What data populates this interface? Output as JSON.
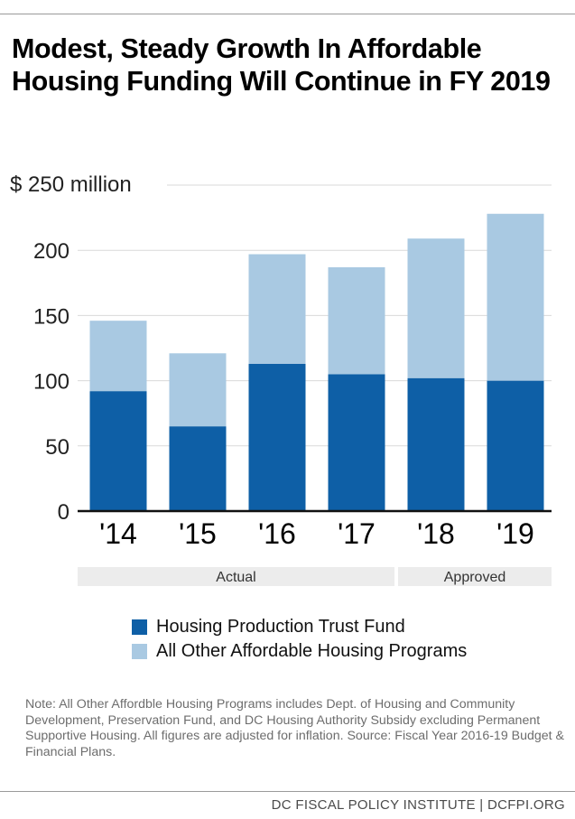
{
  "title": "Modest, Steady Growth In Affordable Housing Funding Will Continue in FY 2019",
  "colors": {
    "primary": "#0e5fa6",
    "secondary": "#a9c9e2",
    "gridline": "#d9d9d9",
    "axis": "#111111",
    "group_band": "#ececec"
  },
  "chart_data": {
    "type": "bar",
    "stacked": true,
    "categories": [
      "'14",
      "'15",
      "'16",
      "'17",
      "'18",
      "'19"
    ],
    "series": [
      {
        "name": "Housing Production Trust Fund",
        "values": [
          92,
          65,
          113,
          105,
          102,
          100
        ]
      },
      {
        "name": "All Other Affordable Housing Programs",
        "values": [
          54,
          56,
          84,
          82,
          107,
          128
        ]
      }
    ],
    "ylim": [
      0,
      250
    ],
    "yticks": [
      0,
      50,
      100,
      150,
      200,
      250
    ],
    "ytick_labels": [
      "0",
      "50",
      "100",
      "150",
      "200",
      "$ 250 million"
    ],
    "grid": true,
    "legend_position": "bottom",
    "groups": [
      {
        "label": "Actual",
        "categories": [
          "'14",
          "'15",
          "'16",
          "'17"
        ]
      },
      {
        "label": "Approved",
        "categories": [
          "'18",
          "'19"
        ]
      }
    ]
  },
  "note": "Note: All Other Affordble Housing Programs includes Dept. of Housing and Community Development, Preservation Fund, and DC Housing Authority Subsidy excluding Permanent Supportive Housing. All figures are adjusted for inflation. Source: Fiscal Year 2016-19 Budget & Financial Plans.",
  "footer": "DC FISCAL POLICY INSTITUTE | DCFPI.ORG"
}
